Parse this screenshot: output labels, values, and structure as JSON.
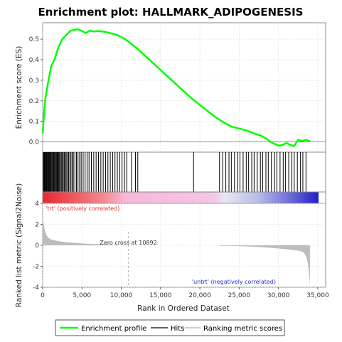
{
  "chart_data": {
    "type": "line",
    "title": "Enrichment plot: HALLMARK_ADIPOGENESIS",
    "ylabel_es": "Enrichment score (ES)",
    "ylabel_metric": "Ranked list metric (Signal2Noise)",
    "xlabel": "Rank in Ordered Dataset",
    "xlim": [
      0,
      36000
    ],
    "es_ylim": [
      -0.05,
      0.58
    ],
    "metric_ylim": [
      -4,
      4
    ],
    "x_ticks": [
      "0",
      "5,000",
      "10,000",
      "15,000",
      "20,000",
      "25,000",
      "30,000",
      "35,000"
    ],
    "x_tick_values": [
      0,
      5000,
      10000,
      15000,
      20000,
      25000,
      30000,
      35000
    ],
    "es_ticks": [
      "0.0",
      "0.1",
      "0.2",
      "0.3",
      "0.4",
      "0.5"
    ],
    "es_tick_values": [
      0.0,
      0.1,
      0.2,
      0.3,
      0.4,
      0.5
    ],
    "metric_ticks": [
      "4",
      "2",
      "0",
      "-2",
      "-4"
    ],
    "metric_tick_values": [
      4,
      2,
      0,
      -2,
      -4
    ],
    "annotation_pos": "'trt' (positively correlated)",
    "annotation_neg": "'untrt' (negatively correlated)",
    "zero_cross_label": "Zero cross at 10892",
    "zero_cross": 10892,
    "series": [
      {
        "name": "Enrichment profile",
        "color": "#00ff00",
        "x": [
          0,
          300,
          700,
          1100,
          1500,
          2000,
          2500,
          3000,
          3500,
          4000,
          4500,
          5000,
          5500,
          6000,
          6500,
          7000,
          7500,
          8000,
          8500,
          9000,
          9500,
          10000,
          10500,
          11000,
          12000,
          13000,
          14000,
          15000,
          16000,
          17000,
          18000,
          19000,
          20000,
          21000,
          22000,
          23000,
          24000,
          25000,
          26000,
          27000,
          27800,
          28500,
          29000,
          29500,
          30000,
          30500,
          31000,
          31500,
          32000,
          32500,
          33000,
          33500,
          34000
        ],
        "y": [
          0.04,
          0.2,
          0.29,
          0.37,
          0.4,
          0.46,
          0.5,
          0.52,
          0.54,
          0.545,
          0.548,
          0.54,
          0.53,
          0.542,
          0.537,
          0.54,
          0.538,
          0.535,
          0.53,
          0.525,
          0.52,
          0.51,
          0.5,
          0.485,
          0.455,
          0.42,
          0.385,
          0.35,
          0.315,
          0.28,
          0.245,
          0.21,
          0.18,
          0.15,
          0.12,
          0.095,
          0.075,
          0.065,
          0.055,
          0.04,
          0.03,
          0.015,
          0.0,
          -0.01,
          -0.018,
          -0.015,
          -0.005,
          -0.015,
          -0.02,
          0.01,
          0.005,
          0.01,
          0.003
        ]
      }
    ],
    "hits": [
      100,
      180,
      260,
      340,
      420,
      500,
      600,
      680,
      760,
      850,
      940,
      1020,
      1100,
      1200,
      1300,
      1380,
      1460,
      1550,
      1650,
      1750,
      1850,
      1950,
      2050,
      2150,
      2250,
      2380,
      2500,
      2620,
      2750,
      2880,
      3000,
      3150,
      3300,
      3450,
      3600,
      3750,
      3900,
      4100,
      4300,
      4500,
      4700,
      4900,
      5150,
      5400,
      5650,
      5900,
      6200,
      6500,
      6800,
      7100,
      7400,
      7700,
      8000,
      8300,
      8600,
      8900,
      9200,
      9500,
      9800,
      10100,
      10400,
      10700,
      11300,
      11800,
      12100,
      19200,
      22500,
      22900,
      23300,
      23700,
      24000,
      24400,
      24800,
      25100,
      25500,
      25900,
      26200,
      26600,
      26900,
      27300,
      27700,
      28000,
      28400,
      28700,
      29100,
      29500,
      29800,
      30200,
      30600,
      30900,
      31300,
      31700,
      32000,
      32400,
      32800,
      33100,
      33500
    ]
  },
  "legend": {
    "items": [
      {
        "label": "Enrichment profile",
        "color": "#00ff00"
      },
      {
        "label": "Hits",
        "color": "#000000"
      },
      {
        "label": "Ranking metric scores",
        "color": "#bdbdbd"
      }
    ]
  }
}
